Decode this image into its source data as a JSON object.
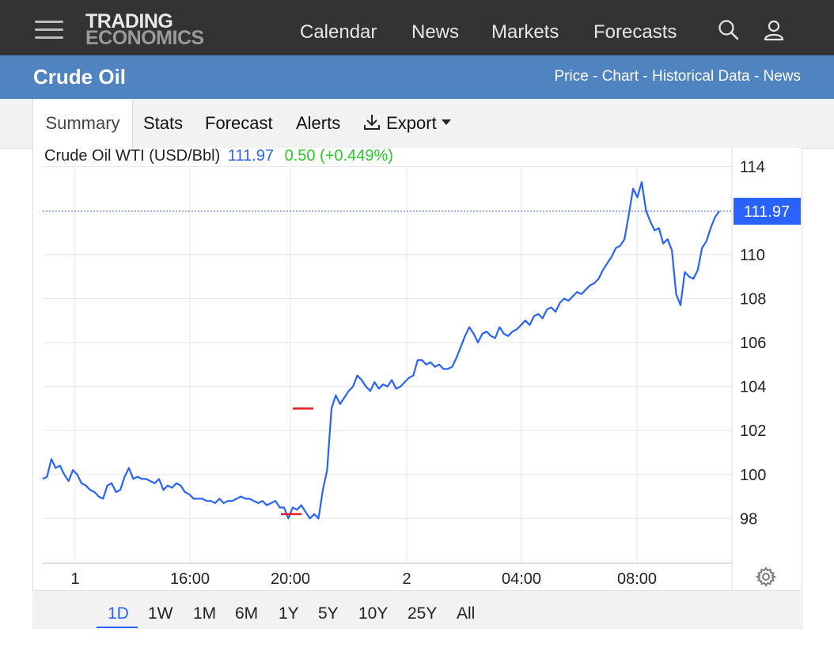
{
  "header": {
    "logo_line1": "TRADING",
    "logo_line2": "ECONOMICS",
    "nav": [
      "Calendar",
      "News",
      "Markets",
      "Forecasts"
    ],
    "icons": [
      "menu-icon",
      "search-icon",
      "user-icon"
    ]
  },
  "title_bar": {
    "title": "Crude Oil",
    "links": [
      "Price",
      "Chart",
      "Historical Data",
      "News"
    ],
    "separator": " - "
  },
  "tabs": [
    "Summary",
    "Stats",
    "Forecast",
    "Alerts",
    "Export"
  ],
  "chart_header": {
    "symbol": "Crude Oil WTI (USD/Bbl)",
    "price": "111.97",
    "change": "0.50 (+0.449%)"
  },
  "chart_data": {
    "type": "line",
    "y_tick_labels": [
      "114",
      "110",
      "108",
      "106",
      "104",
      "102",
      "100",
      "98"
    ],
    "ylim": [
      96,
      114.5
    ],
    "x_tick_labels": [
      "1",
      "16:00",
      "20:00",
      "2",
      "04:00",
      "08:00"
    ],
    "last_price_label": "111.97",
    "grid": true,
    "series": [
      {
        "values": [
          99.8,
          99.9,
          100.7,
          100.3,
          100.4,
          100.0,
          99.7,
          100.2,
          100.0,
          99.6,
          99.5,
          99.3,
          99.2,
          99.0,
          98.9,
          99.5,
          99.6,
          99.2,
          99.3,
          99.9,
          100.3,
          99.8,
          99.9,
          99.8,
          99.8,
          99.7,
          99.6,
          99.8,
          99.3,
          99.5,
          99.4,
          99.6,
          99.5,
          99.2,
          99.1,
          98.9,
          98.9,
          98.9,
          98.8,
          98.8,
          98.7,
          98.9,
          98.7,
          98.8,
          98.8,
          98.9,
          99.0,
          98.9,
          98.9,
          98.8,
          98.7,
          98.8,
          98.6,
          98.7,
          98.8,
          98.5,
          98.5,
          98.0,
          98.5,
          98.4,
          98.6,
          98.3,
          98.0,
          98.2,
          98.0,
          99.3,
          100.2,
          103.0,
          103.6,
          103.2,
          103.5,
          103.8,
          104.0,
          104.5,
          104.3,
          104.0,
          103.8,
          104.2,
          103.9,
          104.1,
          104.0,
          104.3,
          103.9,
          104.0,
          104.2,
          104.4,
          104.5,
          105.2,
          105.2,
          105.0,
          105.1,
          104.9,
          105.0,
          104.8,
          104.8,
          104.9,
          105.3,
          105.8,
          106.3,
          106.7,
          106.4,
          106.0,
          106.4,
          106.5,
          106.3,
          106.2,
          106.7,
          106.4,
          106.3,
          106.5,
          106.6,
          106.8,
          107.0,
          106.8,
          107.2,
          107.3,
          107.1,
          107.5,
          107.6,
          107.4,
          107.8,
          108.0,
          107.9,
          108.1,
          108.3,
          108.2,
          108.4,
          108.6,
          108.7,
          108.9,
          109.3,
          109.6,
          109.9,
          110.3,
          110.4,
          110.7,
          111.8,
          113.0,
          112.6,
          113.3,
          112.0,
          111.5,
          111.1,
          111.2,
          110.5,
          110.7,
          110.2,
          108.2,
          107.7,
          109.2,
          109.0,
          108.9,
          109.3,
          110.3,
          110.6,
          111.2,
          111.7,
          111.97
        ]
      }
    ],
    "markers": [
      103.0,
      98.2
    ]
  },
  "range_buttons": [
    "1D",
    "1W",
    "1M",
    "6M",
    "1Y",
    "5Y",
    "10Y",
    "25Y",
    "All"
  ],
  "range_active": "1D",
  "colors": {
    "line": "#2962ff",
    "marker": "#e11d1d",
    "nav_bg": "#333333",
    "title_bg": "#4f84c1",
    "change": "#2ec52e"
  }
}
